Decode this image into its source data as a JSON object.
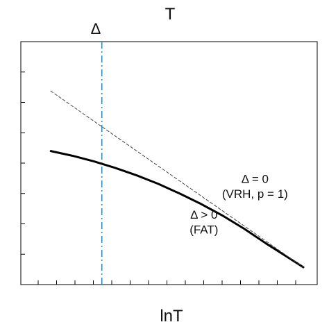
{
  "chart_data": {
    "type": "line",
    "title": "",
    "top_label": "T",
    "xlabel": "lnT",
    "ylabel": "",
    "marker_label": "Δ",
    "grid": false,
    "legend": "none",
    "series": [
      {
        "name": "",
        "style": "solid",
        "color": "#000000",
        "x": [
          0.06,
          0.14,
          0.22,
          0.3,
          0.38,
          0.46,
          0.54,
          0.62,
          0.7,
          0.78,
          0.86,
          0.94,
          1.0
        ],
        "y": [
          0.62,
          0.595,
          0.565,
          0.53,
          0.49,
          0.445,
          0.393,
          0.337,
          0.275,
          0.205,
          0.128,
          0.055,
          0.0
        ]
      },
      {
        "name": "",
        "style": "dashed",
        "color": "#444444",
        "x": [
          0.06,
          1.0
        ],
        "y": [
          0.94,
          0.0
        ]
      }
    ],
    "vertical_line": {
      "x": 0.25,
      "style": "dash-dot",
      "color": "#2a8ac0"
    },
    "annotations": [
      {
        "text": "Δ = 0",
        "x": 0.82,
        "y": 0.45
      },
      {
        "text": "(VRH, p = 1)",
        "x": 0.82,
        "y": 0.37
      },
      {
        "text": "Δ > 0",
        "x": 0.63,
        "y": 0.26
      },
      {
        "text": "(FAT)",
        "x": 0.63,
        "y": 0.18
      }
    ]
  }
}
